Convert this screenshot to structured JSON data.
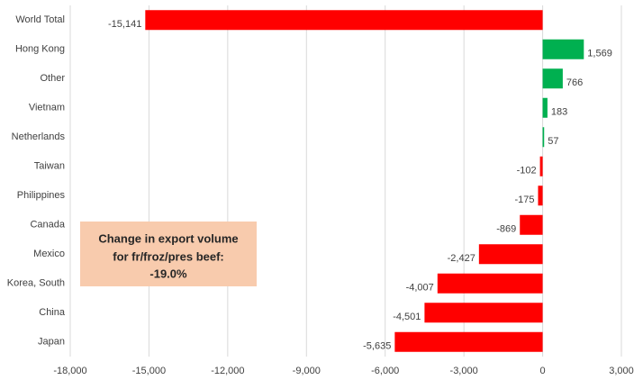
{
  "chart_data": {
    "type": "barh",
    "categories": [
      "World Total",
      "Hong Kong",
      "Other",
      "Vietnam",
      "Netherlands",
      "Taiwan",
      "Philippines",
      "Canada",
      "Mexico",
      "Korea, South",
      "China",
      "Japan"
    ],
    "values": [
      -15141,
      1569,
      766,
      183,
      57,
      -102,
      -175,
      -869,
      -2427,
      -4007,
      -4501,
      -5635
    ],
    "value_labels": [
      "-15,141",
      "1,569",
      "766",
      "183",
      "57",
      "-102",
      "-175",
      "-869",
      "-2,427",
      "-4,007",
      "-4,501",
      "-5,635"
    ],
    "color_positive": "#00b050",
    "color_negative": "#ff0000",
    "xlim": [
      -18000,
      3000
    ],
    "xticks": [
      {
        "value": -18000,
        "label": "-18,000"
      },
      {
        "value": -15000,
        "label": "-15,000"
      },
      {
        "value": -12000,
        "label": "-12,000"
      },
      {
        "value": -9000,
        "label": "-9,000"
      },
      {
        "value": -6000,
        "label": "-6,000"
      },
      {
        "value": -3000,
        "label": "-3,000"
      },
      0,
      {
        "value": 3000,
        "label": "3,000"
      }
    ],
    "grid": true,
    "annotation": [
      "Change in export volume",
      "for fr/froz/pres beef:",
      "-19.0%"
    ]
  }
}
